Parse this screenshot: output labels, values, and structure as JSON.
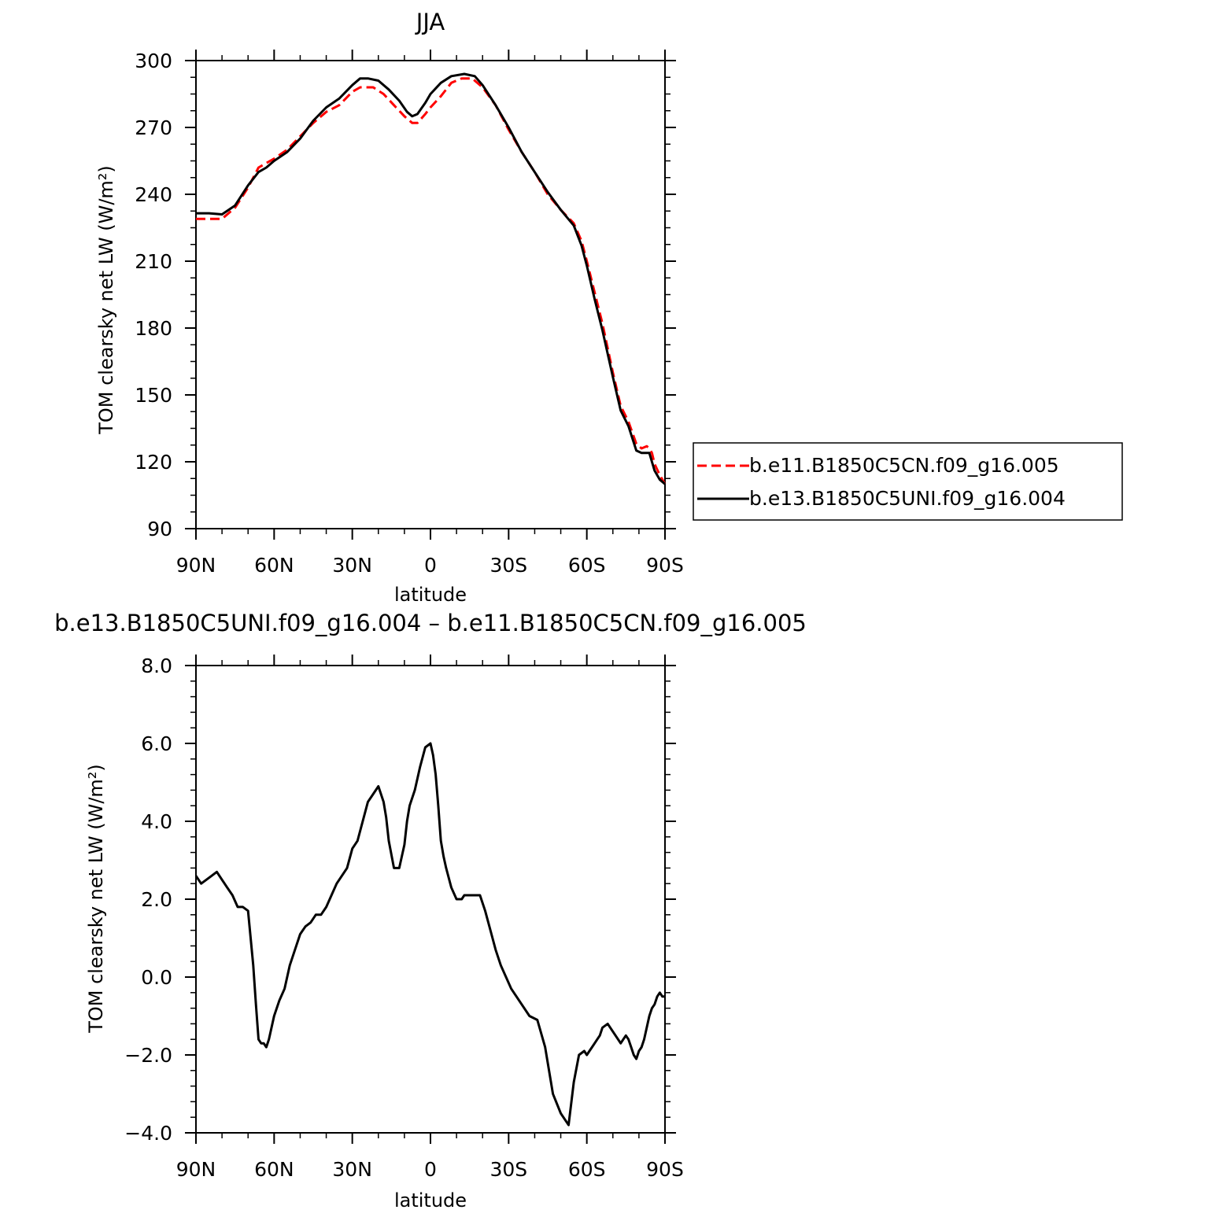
{
  "chart_data": [
    {
      "type": "line",
      "title": "JJA",
      "xlabel": "latitude",
      "ylabel": "TOM clearsky net LW (W/m²)",
      "ylim": [
        90,
        300
      ],
      "xlim": [
        90,
        -90
      ],
      "yticks": [
        "90",
        "120",
        "150",
        "180",
        "210",
        "240",
        "270",
        "300"
      ],
      "xticks": [
        "90N",
        "60N",
        "30N",
        "0",
        "30S",
        "60S",
        "90S"
      ],
      "legend_position": "right",
      "series": [
        {
          "name": "b.e11.B1850C5CN.f09_g16.005",
          "color": "#ff0000",
          "style": "dashed",
          "x": [
            90,
            85,
            80,
            75,
            70,
            66,
            63,
            60,
            55,
            50,
            45,
            40,
            35,
            30,
            27,
            22,
            18,
            14,
            10,
            7,
            5,
            2,
            0,
            -4,
            -8,
            -12,
            -16,
            -20,
            -25,
            -30,
            -35,
            -40,
            -45,
            -50,
            -55,
            -58,
            -60,
            -63,
            -66,
            -70,
            -73,
            -76,
            -79,
            -81,
            -83,
            -84,
            -85,
            -86,
            -88,
            -90
          ],
          "y": [
            229,
            229,
            229,
            234,
            243,
            252,
            254,
            256,
            260,
            266,
            272,
            277,
            280,
            286,
            288,
            288,
            285,
            280,
            275,
            272,
            272,
            276,
            279,
            284,
            290,
            292,
            292,
            288,
            280,
            269,
            259,
            250,
            240,
            233,
            227,
            219,
            210,
            196,
            182,
            160,
            145,
            138,
            128,
            126,
            127,
            126,
            124,
            119,
            114,
            110
          ]
        },
        {
          "name": "b.e13.B1850C5UNI.f09_g16.004",
          "color": "#000000",
          "style": "solid",
          "x": [
            90,
            85,
            80,
            75,
            70,
            66,
            63,
            60,
            55,
            50,
            45,
            40,
            35,
            30,
            27,
            24,
            20,
            16,
            12,
            9,
            7,
            5,
            2,
            0,
            -4,
            -8,
            -13,
            -17,
            -20,
            -25,
            -30,
            -35,
            -40,
            -45,
            -50,
            -55,
            -58,
            -60,
            -63,
            -66,
            -70,
            -73,
            -76,
            -79,
            -81,
            -83,
            -84,
            -85,
            -86,
            -88,
            -90
          ],
          "y": [
            231.5,
            231.5,
            231,
            235,
            244,
            250,
            252,
            255,
            259,
            265,
            273,
            279,
            283,
            289,
            292,
            292,
            291,
            287,
            282,
            277,
            275,
            276,
            281,
            285,
            290,
            293,
            294,
            293,
            289,
            280,
            270,
            259,
            250,
            241,
            233,
            226,
            217,
            208,
            193,
            179,
            158,
            143,
            136,
            125,
            124,
            124,
            124,
            120,
            116,
            112,
            110
          ]
        }
      ]
    },
    {
      "type": "line",
      "title": "b.e13.B1850C5UNI.f09_g16.004 – b.e11.B1850C5CN.f09_g16.005",
      "xlabel": "latitude",
      "ylabel": "TOM clearsky net LW (W/m²)",
      "ylim": [
        -4.0,
        8.0
      ],
      "xlim": [
        90,
        -90
      ],
      "yticks": [
        "−4.0",
        "−2.0",
        "0.0",
        "2.0",
        "4.0",
        "6.0",
        "8.0"
      ],
      "xticks": [
        "90N",
        "60N",
        "30N",
        "0",
        "30S",
        "60S",
        "90S"
      ],
      "series": [
        {
          "name": "",
          "color": "#000000",
          "style": "solid",
          "x": [
            90,
            88,
            86,
            84,
            82,
            80,
            78,
            76,
            74,
            72,
            70,
            68,
            67,
            66,
            65,
            64,
            63,
            62,
            60,
            58,
            56,
            54,
            52,
            50,
            48,
            46,
            44,
            42,
            40,
            38,
            36,
            34,
            32,
            30,
            28,
            26,
            24,
            22,
            20,
            18,
            17,
            16,
            14,
            12,
            10,
            9,
            8,
            6,
            4,
            2,
            0,
            -1,
            -2,
            -3,
            -4,
            -5,
            -6,
            -8,
            -10,
            -12,
            -13,
            -14,
            -15,
            -17,
            -19,
            -21,
            -23,
            -25,
            -27,
            -29,
            -31,
            -33,
            -35,
            -38,
            -41,
            -44,
            -47,
            -50,
            -53,
            -55,
            -57,
            -59,
            -60,
            -61,
            -62,
            -63,
            -64,
            -65,
            -66,
            -68,
            -70,
            -72,
            -73,
            -74,
            -75,
            -76,
            -77,
            -78,
            -79,
            -80,
            -81,
            -82,
            -83,
            -84,
            -85,
            -86,
            -87,
            -88,
            -89,
            -90
          ],
          "y": [
            2.6,
            2.4,
            2.5,
            2.6,
            2.7,
            2.5,
            2.3,
            2.1,
            1.8,
            1.8,
            1.7,
            0.3,
            -0.7,
            -1.6,
            -1.7,
            -1.7,
            -1.8,
            -1.6,
            -1.0,
            -0.6,
            -0.3,
            0.3,
            0.7,
            1.1,
            1.3,
            1.4,
            1.6,
            1.6,
            1.8,
            2.1,
            2.4,
            2.6,
            2.8,
            3.3,
            3.5,
            4.0,
            4.5,
            4.7,
            4.9,
            4.5,
            4.1,
            3.5,
            2.8,
            2.8,
            3.4,
            4.0,
            4.4,
            4.8,
            5.4,
            5.9,
            6.0,
            5.7,
            5.2,
            4.4,
            3.5,
            3.1,
            2.8,
            2.3,
            2.0,
            2.0,
            2.1,
            2.1,
            2.1,
            2.1,
            2.1,
            1.7,
            1.2,
            0.7,
            0.3,
            0.0,
            -0.3,
            -0.5,
            -0.7,
            -1.0,
            -1.1,
            -1.8,
            -3.0,
            -3.5,
            -3.8,
            -2.7,
            -2.0,
            -1.9,
            -2.0,
            -1.9,
            -1.8,
            -1.7,
            -1.6,
            -1.5,
            -1.3,
            -1.2,
            -1.4,
            -1.6,
            -1.7,
            -1.6,
            -1.5,
            -1.6,
            -1.8,
            -2.0,
            -2.1,
            -1.9,
            -1.8,
            -1.6,
            -1.3,
            -1.0,
            -0.8,
            -0.7,
            -0.5,
            -0.4,
            -0.5,
            -0.5
          ]
        }
      ]
    }
  ]
}
